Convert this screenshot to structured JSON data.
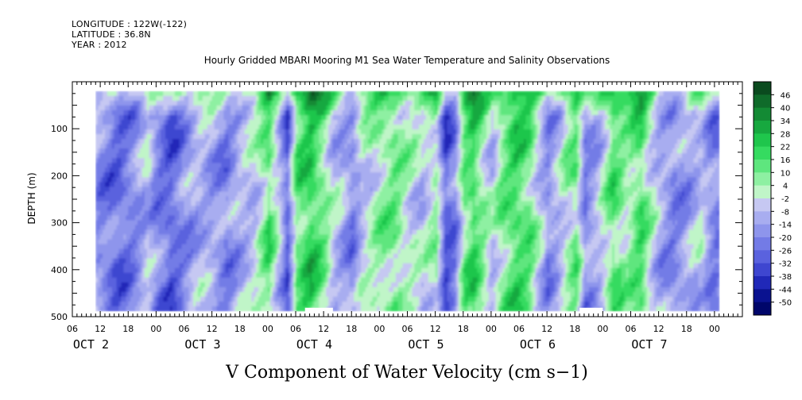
{
  "header": {
    "longitude": "LONGITUDE : 122W(-122)",
    "latitude": "LATITUDE : 36.8N",
    "year": "YEAR : 2012"
  },
  "chart_data": {
    "type": "heatmap",
    "title": "Hourly Gridded MBARI Mooring M1 Sea Water Temperature and Salinity Observations",
    "xlabel": "V Component of Water Velocity (cm s−1)",
    "ylabel": "DEPTH (m)",
    "y_axis": {
      "range": [
        0,
        500
      ],
      "inverted": true,
      "ticks": [
        100,
        200,
        300,
        400,
        500
      ],
      "tick_labels": [
        "100",
        "200",
        "300",
        "400",
        "500"
      ]
    },
    "x_axis": {
      "unit": "hours from Oct 2 00:00",
      "range": [
        -18,
        126
      ],
      "hour_ticks": [
        -18,
        -12,
        -6,
        0,
        6,
        12,
        18,
        24,
        30,
        36,
        42,
        48,
        54,
        60,
        66,
        72,
        78,
        84,
        90,
        96,
        102,
        108,
        114,
        120
      ],
      "hour_tick_labels": [
        "06",
        "12",
        "18",
        "00",
        "06",
        "12",
        "18",
        "00",
        "06",
        "12",
        "18",
        "00",
        "06",
        "12",
        "18",
        "00",
        "06",
        "12",
        "18",
        "00",
        "06",
        "12",
        "18",
        "00"
      ],
      "day_labels": [
        "OCT  2",
        "OCT  3",
        "OCT  4",
        "OCT  5",
        "OCT  6",
        "OCT  7"
      ],
      "day_label_hours": [
        -14,
        10,
        34,
        58,
        82,
        106
      ]
    },
    "colorbar": {
      "levels": [
        46,
        40,
        34,
        28,
        22,
        16,
        10,
        4,
        -2,
        -8,
        -14,
        -20,
        -26,
        -32,
        -38,
        -44,
        -50
      ],
      "colors": [
        "#0a4a1e",
        "#0f6b2a",
        "#138a34",
        "#17a83f",
        "#1fc64c",
        "#35db60",
        "#5ee67e",
        "#8ef0a2",
        "#c0f5c8",
        "#c6c8f2",
        "#a8adf0",
        "#8e95ec",
        "#737be6",
        "#5a62de",
        "#3e46d0",
        "#2028b8",
        "#0a1290",
        "#00066a"
      ]
    },
    "data_extent": {
      "x_hours": [
        -13,
        121
      ],
      "depth_m": [
        20,
        488
      ]
    },
    "grid": false,
    "legend": "colorbar-right"
  }
}
